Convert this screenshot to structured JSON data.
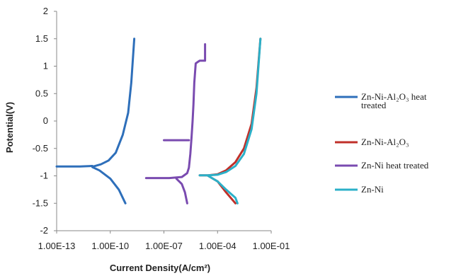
{
  "chart_data": {
    "type": "line",
    "xlabel": "Current Density(A/cm²)",
    "ylabel": "Potential(V)",
    "xscale": "log",
    "xlim": [
      1e-13,
      0.1
    ],
    "ylim": [
      -2,
      2
    ],
    "xticks": [
      "1.00E-13",
      "1.00E-10",
      "1.00E-07",
      "1.00E-04",
      "1.00E-01"
    ],
    "yticks": [
      "2",
      "1.5",
      "1",
      "0.5",
      "0",
      "-0.5",
      "-1",
      "-1.5",
      "-2"
    ],
    "grid": false,
    "legend": "right",
    "series": [
      {
        "name": "Zn-Ni-Al₂O₃ heat treated",
        "name_lines": [
          "Zn-Ni-Al₂O₃ heat",
          "treated"
        ],
        "color": "#2e6fba",
        "x": [
          1e-13,
          2e-12,
          1e-11,
          1.1e-11,
          3e-11,
          8e-11,
          2e-10,
          5e-10,
          1e-09,
          1.5e-09,
          2.2e-09
        ],
        "y": [
          -0.83,
          -0.83,
          -0.82,
          -0.83,
          -0.79,
          -0.72,
          -0.58,
          -0.25,
          0.15,
          0.7,
          1.5
        ],
        "x2": [
          1e-11,
          2.5e-11,
          1e-10,
          3e-10,
          7e-10
        ],
        "y2": [
          -0.84,
          -0.9,
          -1.05,
          -1.25,
          -1.5
        ]
      },
      {
        "name": "Zn-Ni-Al₂O₃",
        "color": "#c0302a",
        "x": [
          1e-05,
          3e-05,
          0.0001,
          0.0003,
          0.001,
          0.003,
          0.008,
          0.015,
          0.025
        ],
        "y": [
          -0.99,
          -0.99,
          -0.97,
          -0.9,
          -0.75,
          -0.5,
          -0.05,
          0.6,
          1.5
        ],
        "x2": [
          3e-05,
          0.0001,
          0.0003,
          0.001
        ],
        "y2": [
          -1.0,
          -1.1,
          -1.3,
          -1.5
        ]
      },
      {
        "name": "Zn-Ni heat treated",
        "color": "#7a4bb0",
        "x": [
          1e-08,
          2e-07,
          1e-06,
          2e-06,
          2.5e-06,
          3e-06,
          3.5e-06,
          4e-06,
          4.5e-06,
          5e-06,
          6e-06,
          8e-06,
          1e-05,
          2e-05,
          2e-05
        ],
        "y": [
          -1.04,
          -1.04,
          -1.02,
          -0.95,
          -0.85,
          -0.6,
          -0.3,
          0,
          0.3,
          0.7,
          1.05,
          1.08,
          1.1,
          1.1,
          1.4
        ],
        "x2": [
          5e-07,
          1e-06,
          1.5e-06,
          2e-06
        ],
        "y2": [
          -1.05,
          -1.15,
          -1.3,
          -1.5
        ],
        "x3": [
          1e-07,
          2.5e-06
        ],
        "y3": [
          -0.35,
          -0.35
        ]
      },
      {
        "name": "Zn-Ni",
        "color": "#2bb0c8",
        "x": [
          1e-05,
          3e-05,
          0.0001,
          0.0003,
          0.001,
          0.003,
          0.008,
          0.015,
          0.025
        ],
        "y": [
          -0.99,
          -0.99,
          -0.98,
          -0.93,
          -0.82,
          -0.6,
          -0.15,
          0.5,
          1.5
        ],
        "x2": [
          3e-05,
          0.0001,
          0.0003,
          0.001,
          0.0013
        ],
        "y2": [
          -1.0,
          -1.1,
          -1.25,
          -1.4,
          -1.5
        ]
      }
    ]
  }
}
